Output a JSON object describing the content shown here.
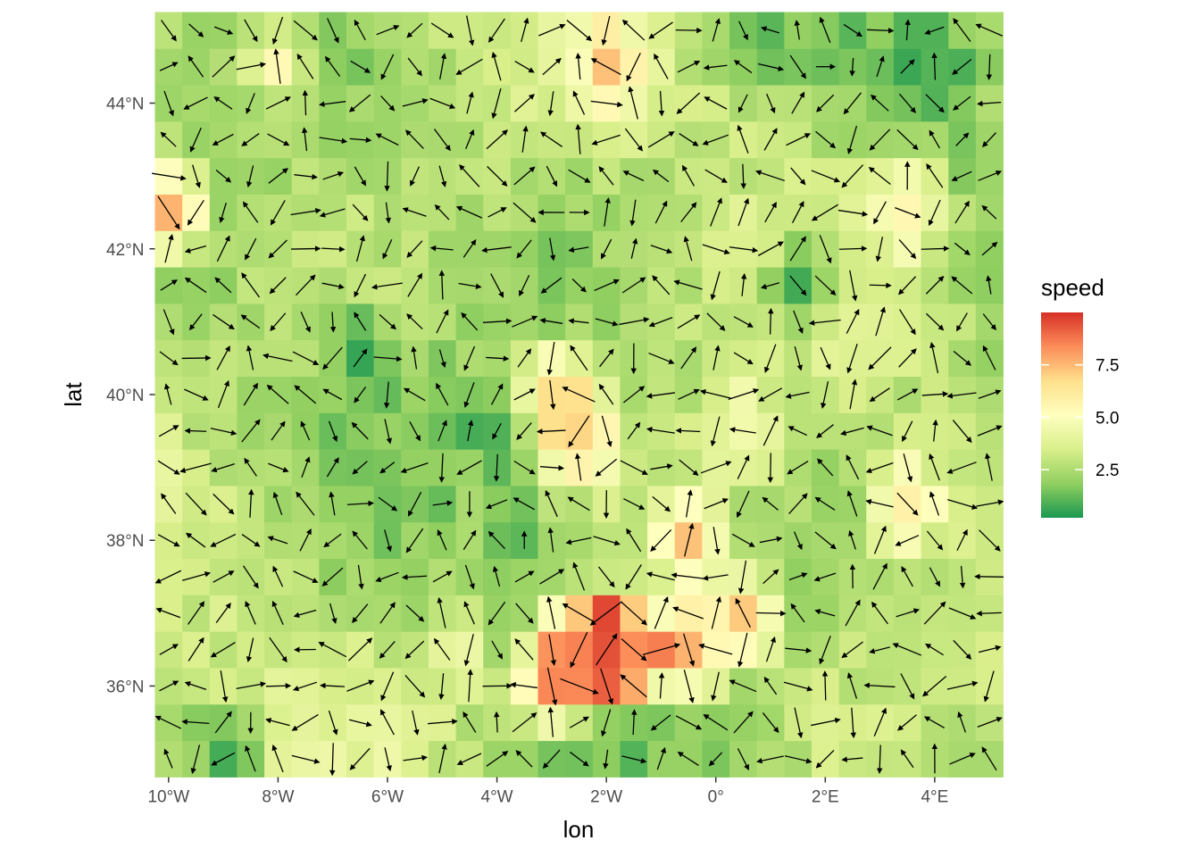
{
  "chart_data": {
    "type": "heatmap",
    "subtype": "raster with wind-direction arrow segments",
    "title": "",
    "xlabel": "lon",
    "ylabel": "lat",
    "xlim": [
      -10.25,
      5.25
    ],
    "ylim": [
      34.75,
      45.25
    ],
    "cell_size_deg": 0.5,
    "x_ticks": [
      {
        "value": -10,
        "label": "10°W"
      },
      {
        "value": -8,
        "label": "8°W"
      },
      {
        "value": -6,
        "label": "6°W"
      },
      {
        "value": -4,
        "label": "4°W"
      },
      {
        "value": -2,
        "label": "2°W"
      },
      {
        "value": 0,
        "label": "0°"
      },
      {
        "value": 2,
        "label": "2°E"
      },
      {
        "value": 4,
        "label": "4°E"
      }
    ],
    "y_ticks": [
      {
        "value": 36,
        "label": "36°N"
      },
      {
        "value": 38,
        "label": "38°N"
      },
      {
        "value": 40,
        "label": "40°N"
      },
      {
        "value": 42,
        "label": "42°N"
      },
      {
        "value": 44,
        "label": "44°N"
      }
    ],
    "legend": {
      "title": "speed",
      "placement": "right",
      "colorscale": [
        "#1a9850",
        "#91cf60",
        "#d9ef8b",
        "#ffffbf",
        "#fee08b",
        "#fc8d59",
        "#d73027"
      ],
      "range": [
        0.2,
        10.0
      ],
      "breaks": [
        {
          "value": 2.5,
          "label": "2.5"
        },
        {
          "value": 5.0,
          "label": "5.0"
        },
        {
          "value": 7.5,
          "label": "7.5"
        }
      ]
    },
    "speed_hotspots": [
      {
        "lon": -2.0,
        "lat": 36.5,
        "speed": 9.8
      },
      {
        "lon": -2.5,
        "lat": 36.5,
        "speed": 9.0
      },
      {
        "lon": -3.0,
        "lat": 36.0,
        "speed": 8.3
      },
      {
        "lon": -10.0,
        "lat": 42.5,
        "speed": 8.0
      },
      {
        "lon": -2.5,
        "lat": 39.5,
        "speed": 7.6
      },
      {
        "lon": -1.5,
        "lat": 36.5,
        "speed": 8.5
      },
      {
        "lon": -0.5,
        "lat": 36.5,
        "speed": 7.5
      },
      {
        "lon": -0.5,
        "lat": 38.0,
        "speed": 7.2
      },
      {
        "lon": -2.0,
        "lat": 44.5,
        "speed": 7.0
      },
      {
        "lon": -3.0,
        "lat": 40.0,
        "speed": 6.6
      },
      {
        "lon": 0.5,
        "lat": 37.0,
        "speed": 6.8
      },
      {
        "lon": 3.5,
        "lat": 38.5,
        "speed": 6.2
      },
      {
        "lon": -4.5,
        "lat": 36.5,
        "speed": 6.0
      },
      {
        "lon": 3.5,
        "lat": 42.5,
        "speed": 5.8
      },
      {
        "lon": -8.0,
        "lat": 44.5,
        "speed": 5.0
      },
      {
        "lon": 0.5,
        "lat": 39.5,
        "speed": 5.0
      }
    ],
    "speed_lows": [
      {
        "lon": -6.5,
        "lat": 40.5,
        "speed": 0.4
      },
      {
        "lon": 4.0,
        "lat": 44.5,
        "speed": 0.5
      },
      {
        "lon": -4.0,
        "lat": 36.5,
        "speed": 0.6
      },
      {
        "lon": -4.0,
        "lat": 39.5,
        "speed": 0.5
      },
      {
        "lon": -9.0,
        "lat": 35.0,
        "speed": 0.7
      },
      {
        "lon": 1.5,
        "lat": 41.5,
        "speed": 0.6
      },
      {
        "lon": -3.5,
        "lat": 38.0,
        "speed": 0.8
      },
      {
        "lon": -3.0,
        "lat": 35.0,
        "speed": 0.8
      },
      {
        "lon": 0.5,
        "lat": 45.0,
        "speed": 1.0
      }
    ]
  }
}
